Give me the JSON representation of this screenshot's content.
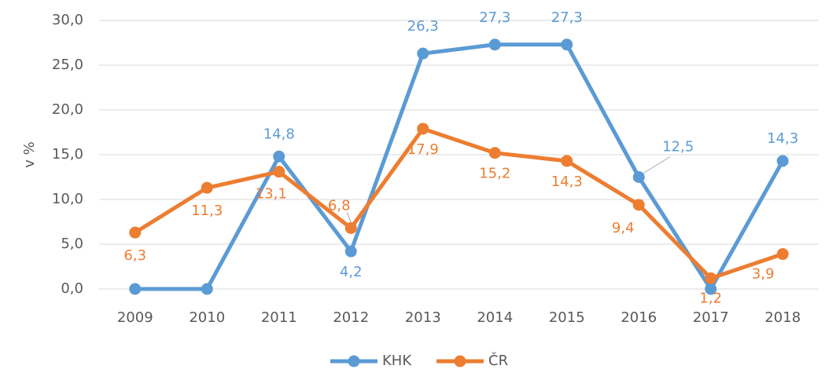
{
  "chart_data": {
    "type": "line",
    "y_label": "v %",
    "categories": [
      "2009",
      "2010",
      "2011",
      "2012",
      "2013",
      "2014",
      "2015",
      "2016",
      "2017",
      "2018"
    ],
    "series": [
      {
        "name": "KHK",
        "color": "#5b9bd5",
        "values": [
          0,
          0,
          14.8,
          4.2,
          26.3,
          27.3,
          27.3,
          12.5,
          0,
          14.3
        ],
        "value_labels": [
          null,
          null,
          "14,8",
          "4,2",
          "26,3",
          "27,3",
          "27,3",
          "12,5",
          null,
          "14,3"
        ]
      },
      {
        "name": "ČR",
        "color": "#ed7d31",
        "values": [
          6.3,
          11.3,
          13.1,
          6.8,
          17.9,
          15.2,
          14.3,
          9.4,
          1.2,
          3.9
        ],
        "value_labels": [
          "6,3",
          "11,3",
          "13,1",
          "6,8",
          "17,9",
          "15,2",
          "14,3",
          "9,4",
          "1,2",
          "3,9"
        ]
      }
    ],
    "ylim": [
      0,
      30
    ],
    "yticks": [
      {
        "value": 0,
        "label": "0,0"
      },
      {
        "value": 5,
        "label": "5,0"
      },
      {
        "value": 10,
        "label": "10,0"
      },
      {
        "value": 15,
        "label": "15,0"
      },
      {
        "value": 20,
        "label": "20,0"
      },
      {
        "value": 25,
        "label": "25,0"
      },
      {
        "value": 30,
        "label": "30,0"
      }
    ],
    "grid": true,
    "legend": "bottom"
  }
}
